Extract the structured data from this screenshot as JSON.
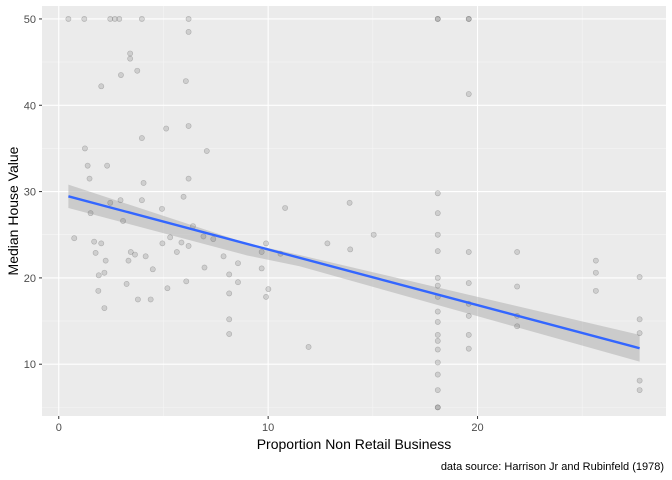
{
  "chart_data": {
    "type": "scatter",
    "title": "",
    "xlabel": "Proportion Non Retail Business",
    "ylabel": "Median House Value",
    "caption": "data source: Harrison Jr and Rubinfeld (1978)",
    "xlim": [
      -0.8,
      29
    ],
    "ylim": [
      4,
      51.5
    ],
    "x_ticks": [
      0,
      10,
      20
    ],
    "y_ticks": [
      10,
      20,
      30,
      40,
      50
    ],
    "grid": true,
    "legend": "none",
    "colors": {
      "panel": "#ebebeb",
      "grid_major": "#ffffff",
      "point": "#5a5a5a",
      "fit_line": "#3366ff",
      "ribbon": "#b0b0b0"
    },
    "points": [
      [
        0.46,
        50.0
      ],
      [
        0.74,
        24.6
      ],
      [
        1.22,
        50.0
      ],
      [
        1.25,
        35.0
      ],
      [
        1.38,
        33.0
      ],
      [
        1.47,
        31.5
      ],
      [
        1.52,
        27.5
      ],
      [
        1.69,
        24.2
      ],
      [
        1.76,
        22.9
      ],
      [
        1.89,
        18.5
      ],
      [
        1.91,
        20.3
      ],
      [
        2.03,
        42.2
      ],
      [
        2.03,
        24.0
      ],
      [
        2.18,
        16.5
      ],
      [
        2.18,
        20.6
      ],
      [
        2.24,
        22.0
      ],
      [
        2.31,
        33.0
      ],
      [
        2.46,
        28.7
      ],
      [
        2.46,
        50.0
      ],
      [
        2.68,
        50.0
      ],
      [
        2.89,
        50.0
      ],
      [
        2.95,
        29.0
      ],
      [
        2.97,
        43.5
      ],
      [
        3.07,
        26.6
      ],
      [
        3.24,
        19.3
      ],
      [
        3.33,
        22.0
      ],
      [
        3.41,
        45.4
      ],
      [
        3.41,
        46.0
      ],
      [
        3.44,
        23.0
      ],
      [
        3.64,
        22.7
      ],
      [
        3.75,
        44.0
      ],
      [
        3.78,
        17.5
      ],
      [
        3.97,
        50.0
      ],
      [
        3.97,
        36.2
      ],
      [
        3.97,
        29.0
      ],
      [
        4.05,
        31.0
      ],
      [
        4.15,
        22.5
      ],
      [
        4.39,
        17.5
      ],
      [
        4.49,
        21.0
      ],
      [
        4.93,
        28.0
      ],
      [
        4.95,
        24.0
      ],
      [
        5.13,
        37.3
      ],
      [
        5.19,
        18.8
      ],
      [
        5.32,
        24.7
      ],
      [
        5.64,
        23.0
      ],
      [
        5.86,
        24.1
      ],
      [
        5.96,
        29.4
      ],
      [
        6.07,
        42.8
      ],
      [
        6.09,
        19.6
      ],
      [
        6.2,
        50.0
      ],
      [
        6.2,
        48.5
      ],
      [
        6.2,
        37.6
      ],
      [
        6.2,
        31.5
      ],
      [
        6.2,
        23.7
      ],
      [
        6.41,
        26.0
      ],
      [
        6.91,
        24.8
      ],
      [
        6.96,
        21.2
      ],
      [
        7.07,
        34.7
      ],
      [
        7.38,
        24.5
      ],
      [
        7.87,
        22.5
      ],
      [
        8.14,
        20.4
      ],
      [
        8.14,
        18.2
      ],
      [
        8.14,
        15.2
      ],
      [
        8.14,
        13.5
      ],
      [
        8.56,
        19.5
      ],
      [
        8.56,
        21.7
      ],
      [
        9.69,
        23.0
      ],
      [
        9.69,
        21.1
      ],
      [
        9.9,
        17.8
      ],
      [
        9.9,
        24.0
      ],
      [
        10.01,
        18.7
      ],
      [
        10.59,
        22.8
      ],
      [
        10.81,
        28.1
      ],
      [
        11.93,
        12.0
      ],
      [
        12.83,
        24.0
      ],
      [
        13.89,
        28.7
      ],
      [
        13.92,
        23.3
      ],
      [
        15.04,
        25.0
      ],
      [
        18.1,
        50.0
      ],
      [
        18.1,
        50.0
      ],
      [
        18.1,
        25.0
      ],
      [
        18.1,
        23.1
      ],
      [
        18.1,
        20.0
      ],
      [
        18.1,
        19.1
      ],
      [
        18.1,
        17.8
      ],
      [
        18.1,
        16.1
      ],
      [
        18.1,
        14.9
      ],
      [
        18.1,
        13.4
      ],
      [
        18.1,
        12.7
      ],
      [
        18.1,
        11.7
      ],
      [
        18.1,
        10.2
      ],
      [
        18.1,
        8.8
      ],
      [
        18.1,
        7.0
      ],
      [
        18.1,
        5.0
      ],
      [
        18.1,
        5.0
      ],
      [
        18.1,
        27.5
      ],
      [
        18.1,
        29.8
      ],
      [
        19.58,
        50.0
      ],
      [
        19.58,
        50.0
      ],
      [
        19.58,
        41.3
      ],
      [
        19.58,
        23.0
      ],
      [
        19.58,
        19.4
      ],
      [
        19.58,
        17.0
      ],
      [
        19.58,
        15.6
      ],
      [
        19.58,
        13.4
      ],
      [
        19.58,
        11.8
      ],
      [
        21.89,
        23.0
      ],
      [
        21.89,
        19.0
      ],
      [
        21.89,
        15.6
      ],
      [
        21.89,
        14.4
      ],
      [
        25.65,
        22.0
      ],
      [
        25.65,
        20.6
      ],
      [
        25.65,
        18.5
      ],
      [
        27.74,
        20.1
      ],
      [
        27.74,
        15.2
      ],
      [
        27.74,
        13.6
      ],
      [
        27.74,
        8.1
      ],
      [
        27.74,
        7.0
      ]
    ],
    "fit": {
      "x": [
        0.46,
        27.74
      ],
      "y": [
        29.45,
        11.85
      ]
    },
    "ribbon": {
      "x": [
        0.46,
        9.0,
        11.5,
        27.74
      ],
      "lower": [
        28.1,
        22.6,
        21.35,
        10.3
      ],
      "upper": [
        30.8,
        24.0,
        22.65,
        13.4
      ]
    }
  }
}
